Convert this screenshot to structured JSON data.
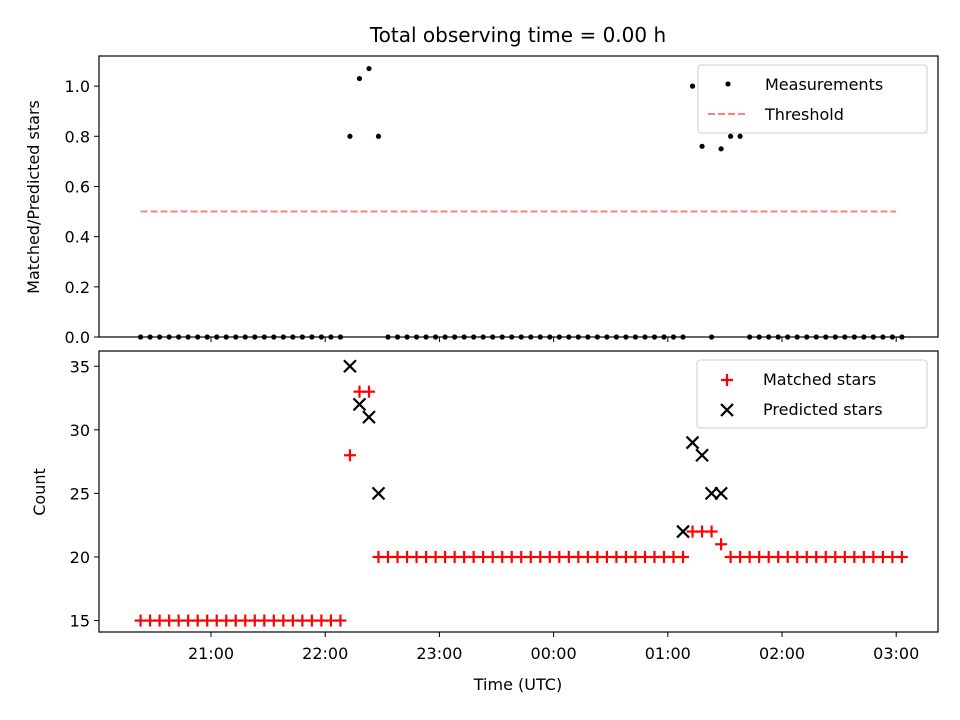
{
  "chart_data": {
    "type": "scatter",
    "title": "Total observing time = 0.00 h",
    "xlabel": "Time (UTC)",
    "x_ticks": [
      "21:00",
      "22:00",
      "23:00",
      "00:00",
      "01:00",
      "02:00",
      "03:00"
    ],
    "top": {
      "ylabel": "Matched/Predicted stars",
      "ylim": [
        0,
        1.12
      ],
      "y_ticks": [
        "0.0",
        "0.2",
        "0.4",
        "0.6",
        "0.8",
        "1.0"
      ],
      "legend_position": "top-right",
      "threshold": {
        "name": "Threshold",
        "value": 0.5,
        "x_range": [
          "20:23",
          "03:00"
        ],
        "color": "#ff8080"
      },
      "measurements": {
        "name": "Measurements",
        "color": "#000000",
        "x": [
          "20:23",
          "20:28",
          "20:33",
          "20:38",
          "20:43",
          "20:48",
          "20:53",
          "20:58",
          "21:03",
          "21:08",
          "21:13",
          "21:18",
          "21:23",
          "21:28",
          "21:33",
          "21:38",
          "21:43",
          "21:48",
          "21:53",
          "21:58",
          "22:03",
          "22:08",
          "22:13",
          "22:18",
          "22:23",
          "22:28",
          "22:33",
          "22:38",
          "22:43",
          "22:48",
          "22:53",
          "22:58",
          "23:03",
          "23:08",
          "23:13",
          "23:18",
          "23:23",
          "23:28",
          "23:33",
          "23:38",
          "23:43",
          "23:48",
          "23:53",
          "23:58",
          "00:03",
          "00:08",
          "00:13",
          "00:18",
          "00:23",
          "00:28",
          "00:33",
          "00:38",
          "00:43",
          "00:48",
          "00:53",
          "00:58",
          "01:03",
          "01:08",
          "01:13",
          "01:18",
          "01:23",
          "01:28",
          "01:33",
          "01:38",
          "01:43",
          "01:48",
          "01:53",
          "01:58",
          "02:03",
          "02:08",
          "02:13",
          "02:18",
          "02:23",
          "02:28",
          "02:33",
          "02:38",
          "02:43",
          "02:48",
          "02:53",
          "02:58",
          "03:03"
        ],
        "y": [
          0,
          0,
          0,
          0,
          0,
          0,
          0,
          0,
          0,
          0,
          0,
          0,
          0,
          0,
          0,
          0,
          0,
          0,
          0,
          0,
          0,
          0,
          0.8,
          1.03,
          1.07,
          0.8,
          0,
          0,
          0,
          0,
          0,
          0,
          0,
          0,
          0,
          0,
          0,
          0,
          0,
          0,
          0,
          0,
          0,
          0,
          0,
          0,
          0,
          0,
          0,
          0,
          0,
          0,
          0,
          0,
          0,
          0,
          0,
          0,
          1.0,
          0.76,
          0,
          0.75,
          0.8,
          0.8,
          0,
          0,
          0,
          0,
          0,
          0,
          0,
          0,
          0,
          0,
          0,
          0,
          0,
          0,
          0,
          0,
          0
        ]
      }
    },
    "bottom": {
      "ylabel": "Count",
      "ylim": [
        14.1,
        36.2
      ],
      "y_ticks": [
        "15",
        "20",
        "25",
        "30",
        "35"
      ],
      "legend_position": "top-right",
      "matched": {
        "name": "Matched stars",
        "color": "#ff0000",
        "x": [
          "20:23",
          "20:28",
          "20:33",
          "20:38",
          "20:43",
          "20:48",
          "20:53",
          "20:58",
          "21:03",
          "21:08",
          "21:13",
          "21:18",
          "21:23",
          "21:28",
          "21:33",
          "21:38",
          "21:43",
          "21:48",
          "21:53",
          "21:58",
          "22:03",
          "22:08",
          "22:13",
          "22:18",
          "22:23",
          "22:28",
          "22:33",
          "22:38",
          "22:43",
          "22:48",
          "22:53",
          "22:58",
          "23:03",
          "23:08",
          "23:13",
          "23:18",
          "23:23",
          "23:28",
          "23:33",
          "23:38",
          "23:43",
          "23:48",
          "23:53",
          "23:58",
          "00:03",
          "00:08",
          "00:13",
          "00:18",
          "00:23",
          "00:28",
          "00:33",
          "00:38",
          "00:43",
          "00:48",
          "00:53",
          "00:58",
          "01:03",
          "01:08",
          "01:13",
          "01:18",
          "01:23",
          "01:28",
          "01:33",
          "01:38",
          "01:43",
          "01:48",
          "01:53",
          "01:58",
          "02:03",
          "02:08",
          "02:13",
          "02:18",
          "02:23",
          "02:28",
          "02:33",
          "02:38",
          "02:43",
          "02:48",
          "02:53",
          "02:58",
          "03:03"
        ],
        "y": [
          15,
          15,
          15,
          15,
          15,
          15,
          15,
          15,
          15,
          15,
          15,
          15,
          15,
          15,
          15,
          15,
          15,
          15,
          15,
          15,
          15,
          15,
          28,
          33,
          33,
          20,
          20,
          20,
          20,
          20,
          20,
          20,
          20,
          20,
          20,
          20,
          20,
          20,
          20,
          20,
          20,
          20,
          20,
          20,
          20,
          20,
          20,
          20,
          20,
          20,
          20,
          20,
          20,
          20,
          20,
          20,
          20,
          20,
          22,
          22,
          22,
          21,
          20,
          20,
          20,
          20,
          20,
          20,
          20,
          20,
          20,
          20,
          20,
          20,
          20,
          20,
          20,
          20,
          20,
          20,
          20
        ]
      },
      "predicted": {
        "name": "Predicted stars",
        "color": "#000000",
        "x": [
          "22:13",
          "22:18",
          "22:23",
          "22:28",
          "01:08",
          "01:13",
          "01:18",
          "01:23",
          "01:28"
        ],
        "y": [
          35,
          32,
          31,
          25,
          22,
          29,
          28,
          25,
          25
        ]
      }
    }
  }
}
